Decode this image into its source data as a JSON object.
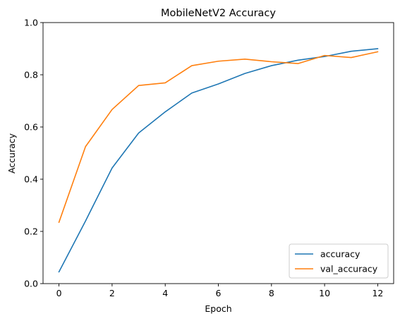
{
  "chart_data": {
    "type": "line",
    "title": "MobileNetV2 Accuracy",
    "xlabel": "Epoch",
    "ylabel": "Accuracy",
    "xlim": [
      -0.6,
      12.6
    ],
    "ylim": [
      0,
      1.0
    ],
    "xticks": [
      0,
      2,
      4,
      6,
      8,
      10,
      12
    ],
    "yticks": [
      0.0,
      0.2,
      0.4,
      0.6,
      0.8,
      1.0
    ],
    "xtick_labels": [
      "0",
      "2",
      "4",
      "6",
      "8",
      "10",
      "12"
    ],
    "ytick_labels": [
      "0.0",
      "0.2",
      "0.4",
      "0.6",
      "0.8",
      "1.0"
    ],
    "grid": false,
    "legend_position": "lower-right",
    "x": [
      0,
      1,
      2,
      3,
      4,
      5,
      6,
      7,
      8,
      9,
      10,
      11,
      12
    ],
    "series": [
      {
        "name": "accuracy",
        "color": "#1f77b4",
        "values": [
          0.045,
          0.24,
          0.443,
          0.577,
          0.658,
          0.73,
          0.765,
          0.805,
          0.835,
          0.856,
          0.87,
          0.89,
          0.9
        ]
      },
      {
        "name": "val_accuracy",
        "color": "#ff7f0e",
        "values": [
          0.235,
          0.525,
          0.667,
          0.759,
          0.769,
          0.835,
          0.852,
          0.86,
          0.85,
          0.843,
          0.874,
          0.866,
          0.888
        ]
      }
    ]
  }
}
